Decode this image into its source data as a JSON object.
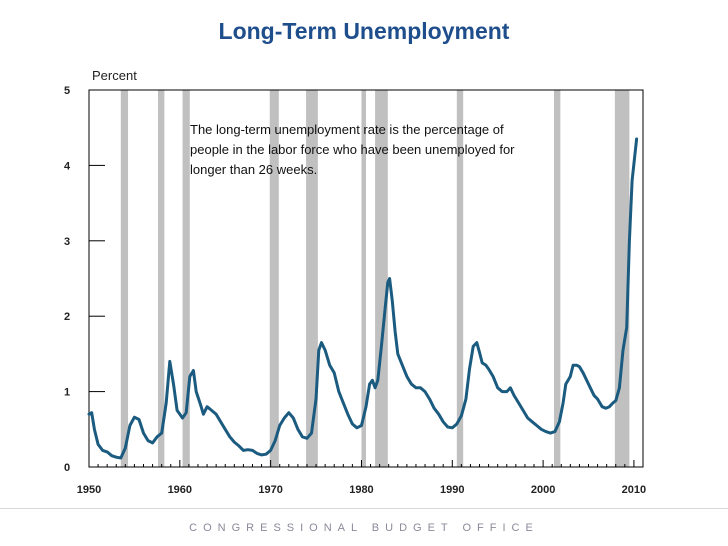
{
  "header": {
    "title": "Long-Term Unemployment"
  },
  "footer": {
    "text": "CONGRESSIONAL BUDGET OFFICE"
  },
  "annotation": {
    "text": "The long-term unemployment rate is the percentage of people in the labor force who have been unemployed for longer than 26 weeks."
  },
  "chart_data": {
    "type": "line",
    "title": "Long-Term Unemployment",
    "ylabel": "Percent",
    "xlabel": "",
    "xlim": [
      1950,
      2011
    ],
    "ylim": [
      0,
      5
    ],
    "x_ticks": [
      1950,
      1960,
      1970,
      1980,
      1990,
      2000,
      2010
    ],
    "y_ticks": [
      0,
      1,
      2,
      3,
      4,
      5
    ],
    "line_color": "#1b5b80",
    "recession_color": "#c0c0c0",
    "recessions": [
      [
        1953.5,
        1954.3
      ],
      [
        1957.6,
        1958.3
      ],
      [
        1960.3,
        1961.1
      ],
      [
        1969.9,
        1970.9
      ],
      [
        1973.9,
        1975.2
      ],
      [
        1980.0,
        1980.5
      ],
      [
        1981.5,
        1982.9
      ],
      [
        1990.5,
        1991.2
      ],
      [
        2001.2,
        2001.9
      ],
      [
        2007.9,
        2009.5
      ]
    ],
    "series": [
      {
        "name": "Long-term unemployment rate",
        "points": [
          [
            1950.0,
            0.7
          ],
          [
            1950.3,
            0.72
          ],
          [
            1950.6,
            0.5
          ],
          [
            1951.0,
            0.3
          ],
          [
            1951.5,
            0.22
          ],
          [
            1952.0,
            0.2
          ],
          [
            1952.5,
            0.15
          ],
          [
            1953.0,
            0.13
          ],
          [
            1953.5,
            0.12
          ],
          [
            1954.0,
            0.25
          ],
          [
            1954.5,
            0.55
          ],
          [
            1955.0,
            0.66
          ],
          [
            1955.5,
            0.63
          ],
          [
            1956.0,
            0.45
          ],
          [
            1956.5,
            0.35
          ],
          [
            1957.0,
            0.32
          ],
          [
            1957.5,
            0.4
          ],
          [
            1958.0,
            0.45
          ],
          [
            1958.5,
            0.85
          ],
          [
            1958.9,
            1.4
          ],
          [
            1959.3,
            1.1
          ],
          [
            1959.7,
            0.75
          ],
          [
            1960.3,
            0.65
          ],
          [
            1960.7,
            0.72
          ],
          [
            1961.1,
            1.2
          ],
          [
            1961.5,
            1.28
          ],
          [
            1961.8,
            1.0
          ],
          [
            1962.3,
            0.82
          ],
          [
            1962.6,
            0.7
          ],
          [
            1963.0,
            0.8
          ],
          [
            1963.5,
            0.75
          ],
          [
            1964.0,
            0.7
          ],
          [
            1964.5,
            0.6
          ],
          [
            1965.0,
            0.5
          ],
          [
            1965.5,
            0.4
          ],
          [
            1966.0,
            0.33
          ],
          [
            1966.5,
            0.28
          ],
          [
            1967.0,
            0.22
          ],
          [
            1967.5,
            0.23
          ],
          [
            1968.0,
            0.22
          ],
          [
            1968.5,
            0.18
          ],
          [
            1969.0,
            0.16
          ],
          [
            1969.5,
            0.17
          ],
          [
            1970.0,
            0.22
          ],
          [
            1970.5,
            0.35
          ],
          [
            1971.0,
            0.55
          ],
          [
            1971.5,
            0.65
          ],
          [
            1972.0,
            0.72
          ],
          [
            1972.5,
            0.65
          ],
          [
            1973.0,
            0.5
          ],
          [
            1973.5,
            0.4
          ],
          [
            1974.0,
            0.38
          ],
          [
            1974.5,
            0.45
          ],
          [
            1975.0,
            0.9
          ],
          [
            1975.3,
            1.55
          ],
          [
            1975.6,
            1.65
          ],
          [
            1976.0,
            1.55
          ],
          [
            1976.5,
            1.35
          ],
          [
            1977.0,
            1.25
          ],
          [
            1977.5,
            1.0
          ],
          [
            1978.0,
            0.85
          ],
          [
            1978.5,
            0.7
          ],
          [
            1979.0,
            0.57
          ],
          [
            1979.5,
            0.52
          ],
          [
            1980.0,
            0.55
          ],
          [
            1980.5,
            0.8
          ],
          [
            1980.9,
            1.1
          ],
          [
            1981.2,
            1.15
          ],
          [
            1981.5,
            1.05
          ],
          [
            1981.8,
            1.15
          ],
          [
            1982.2,
            1.6
          ],
          [
            1982.6,
            2.1
          ],
          [
            1982.9,
            2.45
          ],
          [
            1983.1,
            2.5
          ],
          [
            1983.4,
            2.2
          ],
          [
            1983.7,
            1.8
          ],
          [
            1984.0,
            1.5
          ],
          [
            1984.5,
            1.35
          ],
          [
            1985.0,
            1.2
          ],
          [
            1985.5,
            1.1
          ],
          [
            1986.0,
            1.05
          ],
          [
            1986.5,
            1.05
          ],
          [
            1987.0,
            1.0
          ],
          [
            1987.5,
            0.9
          ],
          [
            1988.0,
            0.78
          ],
          [
            1988.5,
            0.7
          ],
          [
            1989.0,
            0.6
          ],
          [
            1989.5,
            0.53
          ],
          [
            1990.0,
            0.52
          ],
          [
            1990.5,
            0.57
          ],
          [
            1991.0,
            0.68
          ],
          [
            1991.5,
            0.9
          ],
          [
            1991.9,
            1.3
          ],
          [
            1992.3,
            1.6
          ],
          [
            1992.7,
            1.65
          ],
          [
            1993.0,
            1.52
          ],
          [
            1993.3,
            1.38
          ],
          [
            1993.7,
            1.35
          ],
          [
            1994.0,
            1.3
          ],
          [
            1994.5,
            1.2
          ],
          [
            1995.0,
            1.05
          ],
          [
            1995.5,
            1.0
          ],
          [
            1996.0,
            1.0
          ],
          [
            1996.4,
            1.05
          ],
          [
            1996.8,
            0.95
          ],
          [
            1997.3,
            0.85
          ],
          [
            1997.8,
            0.75
          ],
          [
            1998.3,
            0.65
          ],
          [
            1998.8,
            0.6
          ],
          [
            1999.3,
            0.55
          ],
          [
            1999.8,
            0.5
          ],
          [
            2000.3,
            0.47
          ],
          [
            2000.8,
            0.45
          ],
          [
            2001.3,
            0.47
          ],
          [
            2001.8,
            0.6
          ],
          [
            2002.2,
            0.85
          ],
          [
            2002.5,
            1.1
          ],
          [
            2003.0,
            1.2
          ],
          [
            2003.3,
            1.35
          ],
          [
            2003.7,
            1.35
          ],
          [
            2004.0,
            1.33
          ],
          [
            2004.4,
            1.25
          ],
          [
            2004.8,
            1.15
          ],
          [
            2005.2,
            1.05
          ],
          [
            2005.6,
            0.95
          ],
          [
            2006.0,
            0.9
          ],
          [
            2006.5,
            0.8
          ],
          [
            2006.9,
            0.78
          ],
          [
            2007.3,
            0.8
          ],
          [
            2007.7,
            0.85
          ],
          [
            2008.0,
            0.88
          ],
          [
            2008.4,
            1.05
          ],
          [
            2008.8,
            1.55
          ],
          [
            2009.2,
            1.85
          ],
          [
            2009.5,
            3.0
          ],
          [
            2009.8,
            3.8
          ],
          [
            2010.3,
            4.35
          ]
        ]
      }
    ]
  }
}
